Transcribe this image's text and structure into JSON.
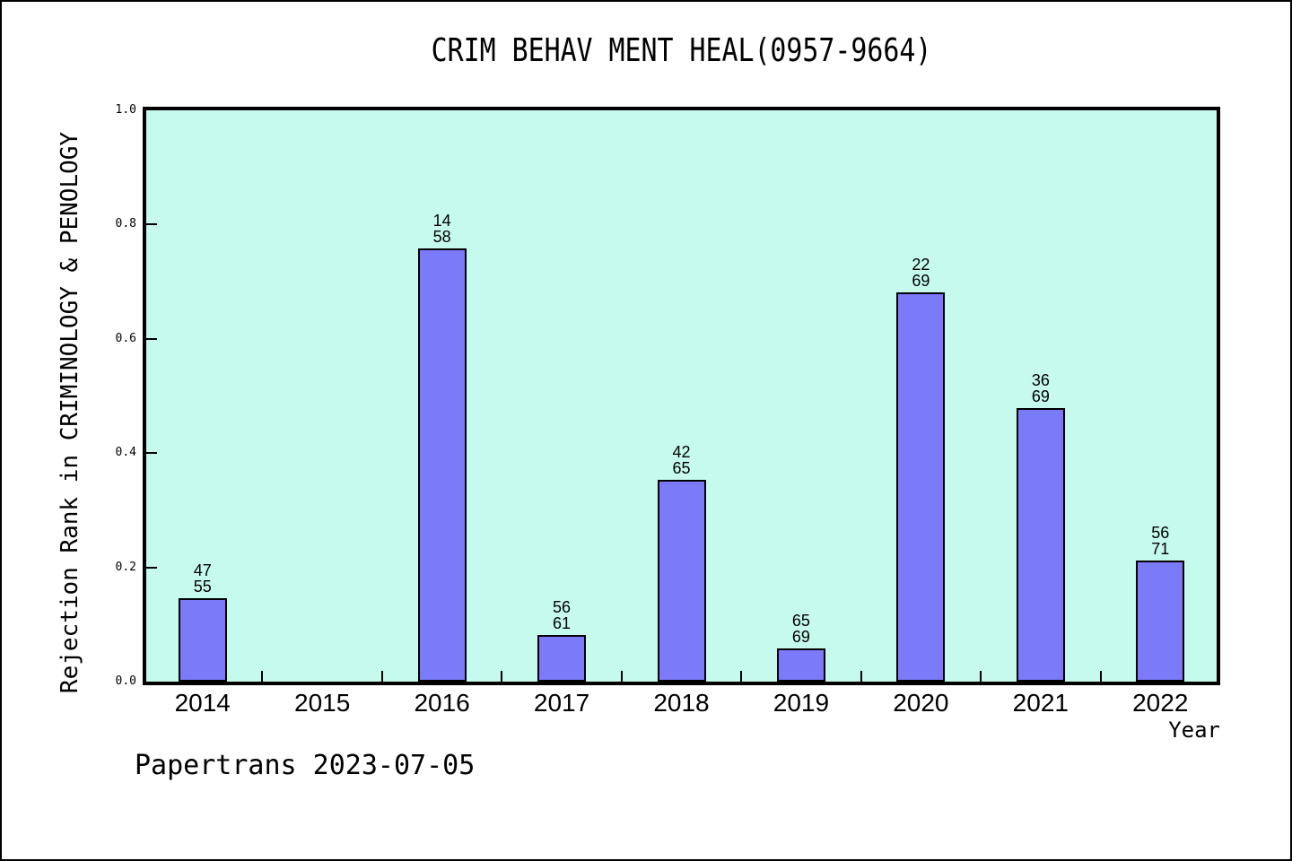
{
  "footer": "Papertrans 2023-07-05",
  "colors": {
    "page_bg": "#ffffff",
    "plot_bg": "#c6faec",
    "bar_fill": "#7b7bfa",
    "bar_border": "#000000",
    "text": "#000000"
  },
  "chart_data": {
    "type": "bar",
    "title": "CRIM BEHAV MENT HEAL(0957-9664)",
    "xlabel": "Year",
    "ylabel": "Rejection Rank in CRIMINOLOGY & PENOLOGY",
    "ylim": [
      0.0,
      1.0
    ],
    "ytick_labels": [
      "0.0",
      "0.2",
      "0.4",
      "0.6",
      "0.8",
      "1.0"
    ],
    "ytick_values": [
      0.0,
      0.2,
      0.4,
      0.6,
      0.8,
      1.0
    ],
    "grid": "off",
    "legend": "none",
    "categories": [
      "2014",
      "2015",
      "2016",
      "2017",
      "2018",
      "2019",
      "2020",
      "2021",
      "2022"
    ],
    "values": [
      0.1455,
      null,
      0.7586,
      0.082,
      0.3538,
      0.058,
      0.6812,
      0.4783,
      0.2113
    ],
    "bar_labels": [
      [
        "47",
        "55"
      ],
      null,
      [
        "14",
        "58"
      ],
      [
        "56",
        "61"
      ],
      [
        "42",
        "65"
      ],
      [
        "65",
        "69"
      ],
      [
        "22",
        "69"
      ],
      [
        "36",
        "69"
      ],
      [
        "56",
        "71"
      ]
    ],
    "bar_label_meaning": "rank over total journals shown above each bar"
  }
}
